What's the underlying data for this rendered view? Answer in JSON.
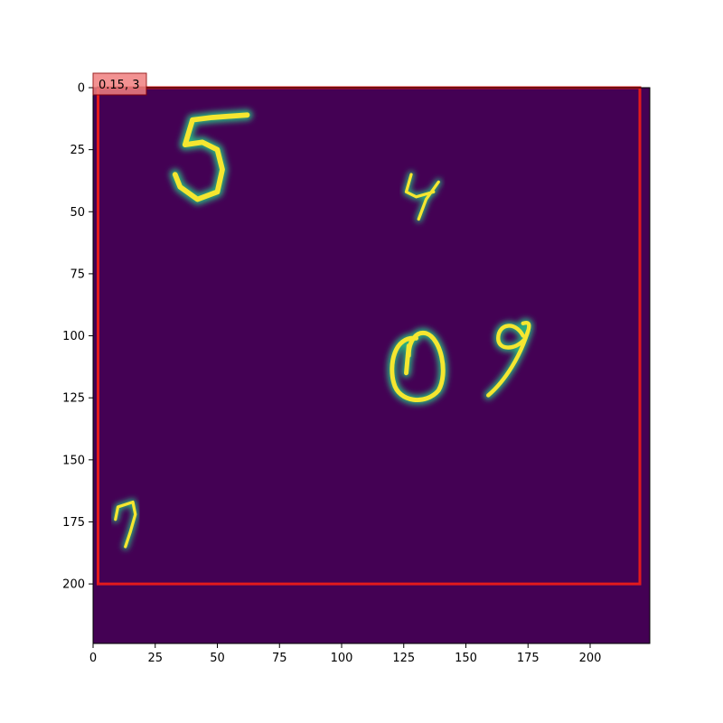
{
  "chart_data": {
    "type": "image",
    "xlim": [
      0,
      224
    ],
    "ylim": [
      224,
      0
    ],
    "x_ticks": [
      0,
      25,
      50,
      75,
      100,
      125,
      150,
      175,
      200
    ],
    "y_ticks": [
      0,
      25,
      50,
      75,
      100,
      125,
      150,
      175,
      200
    ],
    "background_color": "#440154",
    "digit_stroke_color": "#f5e630",
    "digit_edge_color": "#2ab07f",
    "digits": [
      {
        "label": "5",
        "x_range": [
          32,
          64
        ],
        "y_range": [
          8,
          47
        ]
      },
      {
        "label": "4",
        "x_range": [
          125,
          139
        ],
        "y_range": [
          34,
          54
        ]
      },
      {
        "label": "0",
        "x_range": [
          119,
          142
        ],
        "y_range": [
          97,
          127
        ]
      },
      {
        "label": "9",
        "x_range": [
          158,
          178
        ],
        "y_range": [
          93,
          125
        ]
      },
      {
        "label": "7",
        "x_range": [
          8,
          19
        ],
        "y_range": [
          166,
          186
        ]
      }
    ],
    "annotation": {
      "box": {
        "x_range": [
          2,
          220
        ],
        "y_range": [
          0,
          200
        ]
      },
      "box_color": "#e31a1c",
      "label": "0.15, 3",
      "label_bg": "#f08080"
    }
  }
}
